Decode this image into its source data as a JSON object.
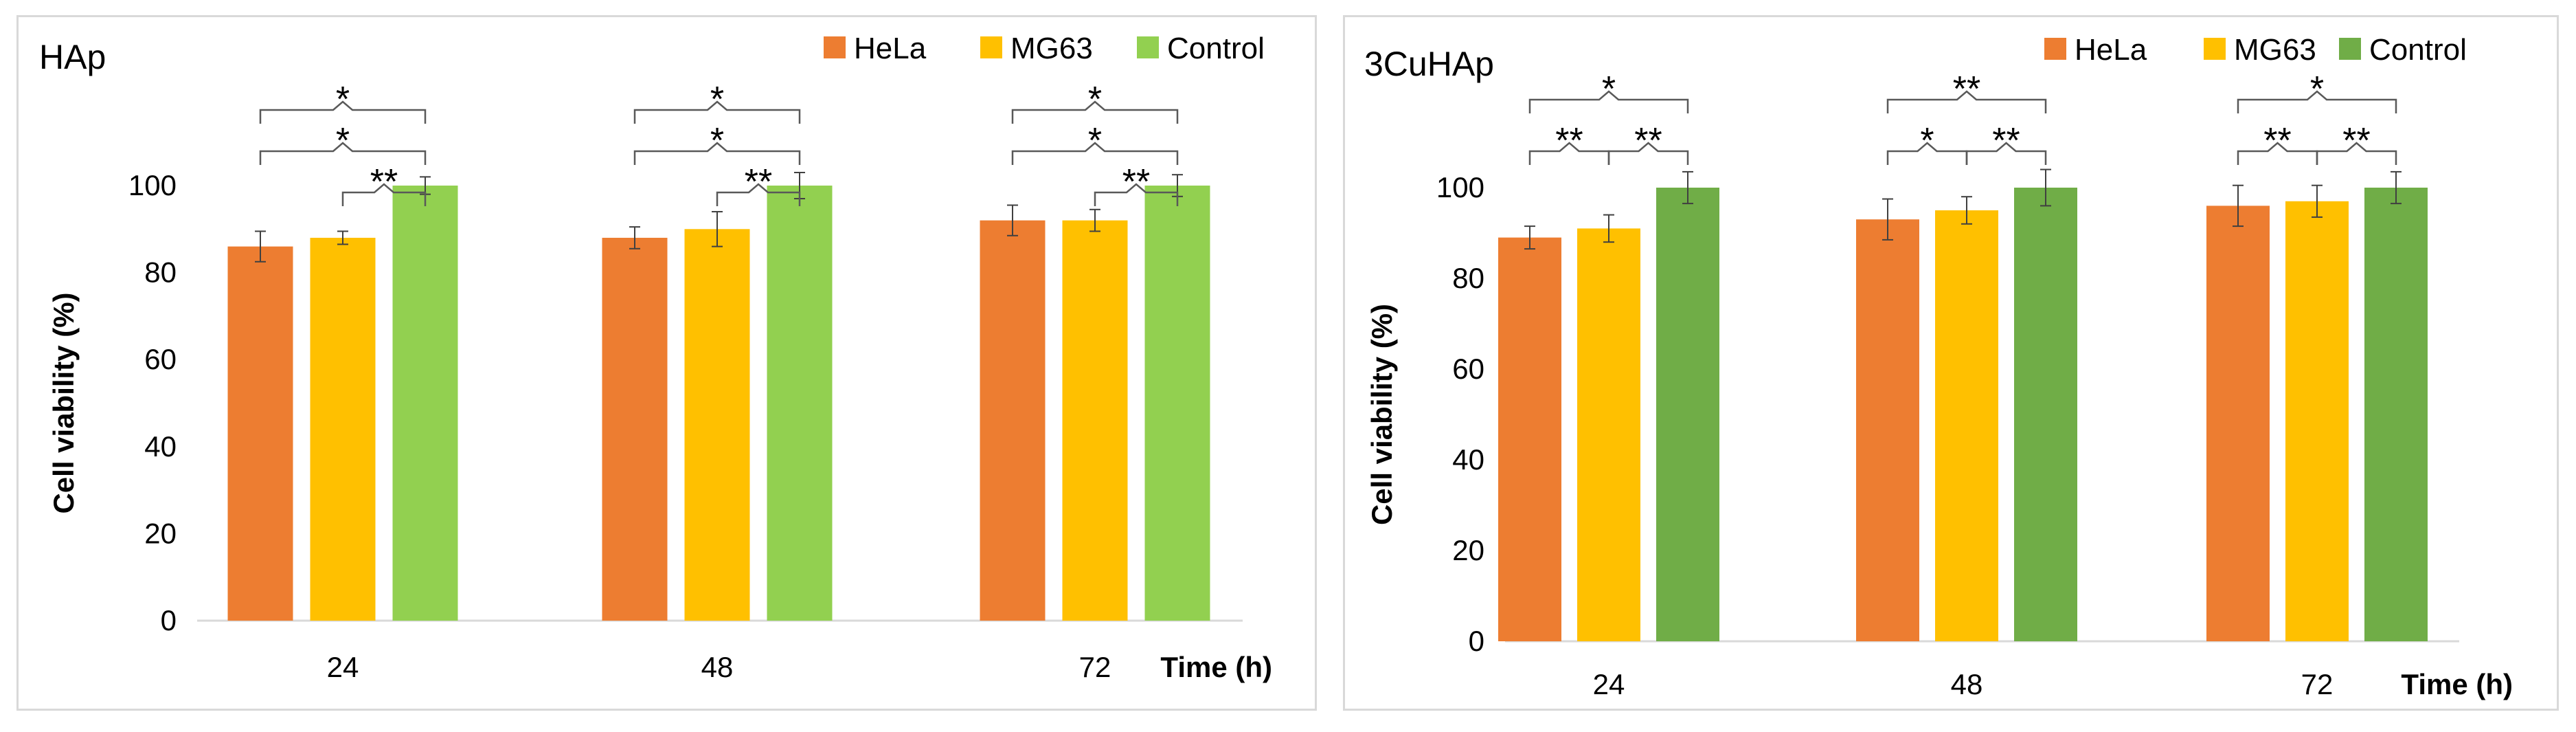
{
  "chart_data": [
    {
      "type": "bar",
      "title": "HAp",
      "categories": [
        "24",
        "48",
        "72"
      ],
      "xlabel": "Time (h)",
      "ylabel": "Cell viability (%)",
      "ylim": [
        0,
        100
      ],
      "yticks": [
        0,
        20,
        40,
        60,
        80,
        100
      ],
      "grid": false,
      "legend": "top-right",
      "series": [
        {
          "name": "HeLa",
          "color": "#ed7d31",
          "values": [
            86,
            88,
            92
          ],
          "errors": [
            3.5,
            2.5,
            3.5
          ]
        },
        {
          "name": "MG63",
          "color": "#ffc000",
          "values": [
            88,
            90,
            92
          ],
          "errors": [
            1.5,
            4,
            2.5
          ]
        },
        {
          "name": "Control",
          "color": "#92d050",
          "values": [
            100,
            100,
            100
          ],
          "errors": [
            2,
            3,
            2.5
          ]
        }
      ],
      "significance": [
        {
          "category": 0,
          "from": 0,
          "to": 2,
          "label": "*",
          "level": 2
        },
        {
          "category": 0,
          "from": 0,
          "to": 2,
          "label": "*",
          "level": 1
        },
        {
          "category": 0,
          "from": 1,
          "to": 2,
          "label": "**",
          "level": 0
        },
        {
          "category": 1,
          "from": 0,
          "to": 2,
          "label": "*",
          "level": 2
        },
        {
          "category": 1,
          "from": 0,
          "to": 2,
          "label": "*",
          "level": 1
        },
        {
          "category": 1,
          "from": 1,
          "to": 2,
          "label": "**",
          "level": 0
        },
        {
          "category": 2,
          "from": 0,
          "to": 2,
          "label": "*",
          "level": 2
        },
        {
          "category": 2,
          "from": 0,
          "to": 2,
          "label": "*",
          "level": 1
        },
        {
          "category": 2,
          "from": 1,
          "to": 2,
          "label": "**",
          "level": 0
        }
      ]
    },
    {
      "type": "bar",
      "title": "3CuHAp",
      "categories": [
        "24",
        "48",
        "72"
      ],
      "xlabel": "Time (h)",
      "ylabel": "Cell viability (%)",
      "ylim": [
        0,
        100
      ],
      "yticks": [
        0,
        20,
        40,
        60,
        80,
        100
      ],
      "grid": false,
      "legend": "top-right",
      "series": [
        {
          "name": "HeLa",
          "color": "#ed7d31",
          "values": [
            89,
            93,
            96
          ],
          "errors": [
            2.5,
            4.5,
            4.5
          ]
        },
        {
          "name": "MG63",
          "color": "#ffc000",
          "values": [
            91,
            95,
            97
          ],
          "errors": [
            3,
            3,
            3.5
          ]
        },
        {
          "name": "Control",
          "color": "#70ad47",
          "values": [
            100,
            100,
            100
          ],
          "errors": [
            3.5,
            4,
            3.5
          ]
        }
      ],
      "significance": [
        {
          "category": 0,
          "from": 0,
          "to": 2,
          "label": "*",
          "level": 1
        },
        {
          "category": 0,
          "from": 0,
          "to": 1,
          "label": "**",
          "level": 0
        },
        {
          "category": 0,
          "from": 1,
          "to": 2,
          "label": "**",
          "level": 0
        },
        {
          "category": 1,
          "from": 0,
          "to": 2,
          "label": "**",
          "level": 1
        },
        {
          "category": 1,
          "from": 0,
          "to": 1,
          "label": "*",
          "level": 0
        },
        {
          "category": 1,
          "from": 1,
          "to": 2,
          "label": "**",
          "level": 0
        },
        {
          "category": 2,
          "from": 0,
          "to": 2,
          "label": "*",
          "level": 1
        },
        {
          "category": 2,
          "from": 0,
          "to": 1,
          "label": "**",
          "level": 0
        },
        {
          "category": 2,
          "from": 1,
          "to": 2,
          "label": "**",
          "level": 0
        }
      ]
    }
  ]
}
